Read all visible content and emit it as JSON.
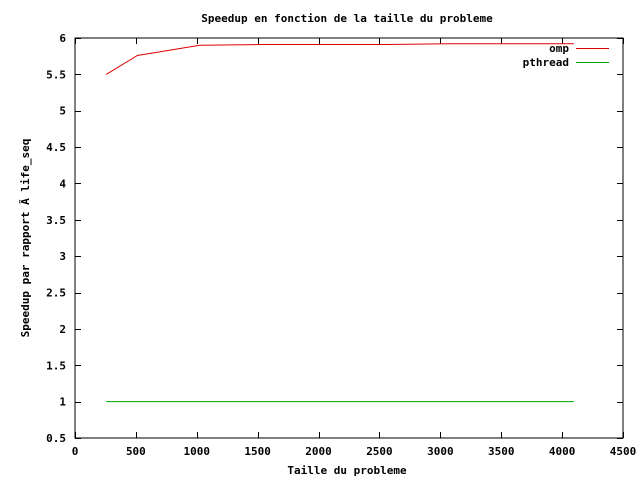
{
  "chart_data": {
    "type": "line",
    "title": "Speedup en fonction de la taille du probleme",
    "xlabel": "Taille du probleme",
    "ylabel": "Speedup par rapport Ã  life_seq",
    "xlim": [
      0,
      4500
    ],
    "ylim": [
      0.5,
      6
    ],
    "x_ticks": [
      0,
      500,
      1000,
      1500,
      2000,
      2500,
      3000,
      3500,
      4000,
      4500
    ],
    "x_tick_labels": [
      "0",
      "500",
      "1000",
      "1500",
      "2000",
      "2500",
      "3000",
      "3500",
      "4000",
      "4500"
    ],
    "y_ticks": [
      0.5,
      1,
      1.5,
      2,
      2.5,
      3,
      3.5,
      4,
      4.5,
      5,
      5.5,
      6
    ],
    "y_tick_labels": [
      "0.5",
      "1",
      "1.5",
      "2",
      "2.5",
      "3",
      "3.5",
      "4",
      "4.5",
      "5",
      "5.5",
      "6"
    ],
    "grid": false,
    "legend_position": "top-right",
    "series": [
      {
        "name": "omp",
        "color": "#e00000",
        "x": [
          256,
          512,
          1024,
          1536,
          2048,
          2560,
          3072,
          3584,
          4096
        ],
        "y": [
          5.5,
          5.76,
          5.9,
          5.91,
          5.91,
          5.91,
          5.92,
          5.92,
          5.92
        ]
      },
      {
        "name": "pthread",
        "color": "#00a000",
        "x": [
          256,
          512,
          1024,
          1536,
          2048,
          2560,
          3072,
          3584,
          4096
        ],
        "y": [
          1,
          1,
          1,
          1,
          1,
          1,
          1,
          1,
          1
        ]
      }
    ]
  }
}
